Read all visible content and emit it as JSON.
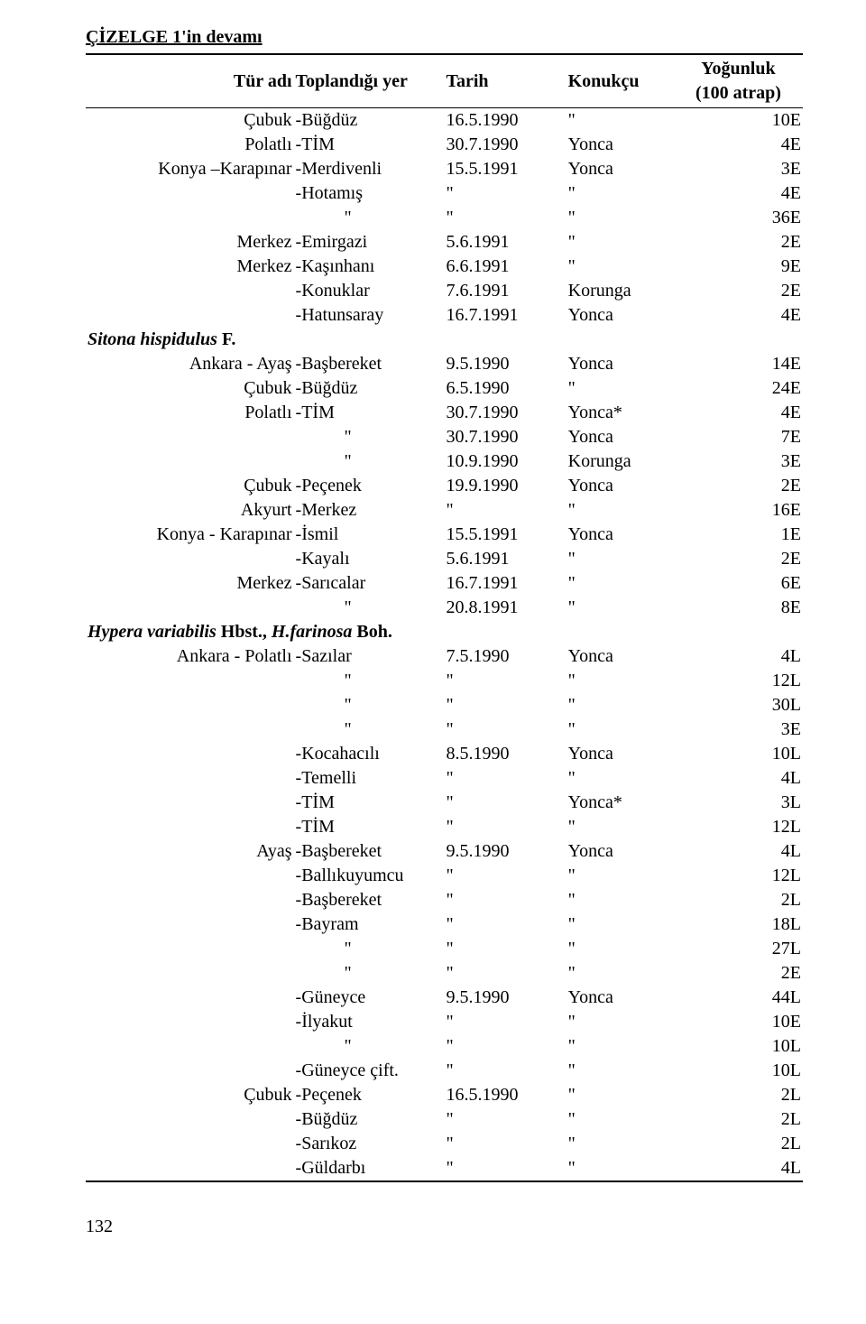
{
  "title": "ÇİZELGE 1'in devamı",
  "columns": {
    "c1": "Tür adı",
    "c2": "Toplandığı yer",
    "c3": "Tarih",
    "c4": "Konukçu",
    "c5a": "Yoğunluk",
    "c5b": "(100 atrap)"
  },
  "footer": "132",
  "rows": [
    {
      "c1": "Çubuk",
      "c2": "-Büğdüz",
      "c3": "16.5.1990",
      "c4": "\"",
      "c5": "10E"
    },
    {
      "c1": "Polatlı",
      "c2": "-TİM",
      "c3": "30.7.1990",
      "c4": "Yonca",
      "c5": "4E"
    },
    {
      "c1": "Konya –Karapınar",
      "c2": "-Merdivenli",
      "c3": "15.5.1991",
      "c4": "Yonca",
      "c5": "3E"
    },
    {
      "c1": "",
      "c2": "-Hotamış",
      "c3": "\"",
      "c4": "\"",
      "c5": "4E"
    },
    {
      "c1": "",
      "c2": "\"",
      "indent": true,
      "c3": "\"",
      "c4": "\"",
      "c5": "36E"
    },
    {
      "c1": "Merkez",
      "c2": "-Emirgazi",
      "c3": "5.6.1991",
      "c4": "\"",
      "c5": "2E"
    },
    {
      "c1": "Merkez",
      "c2": "-Kaşınhanı",
      "c3": "6.6.1991",
      "c4": "\"",
      "c5": "9E"
    },
    {
      "c1": "",
      "c2": "-Konuklar",
      "c3": "7.6.1991",
      "c4": "Korunga",
      "c5": "2E"
    },
    {
      "c1": "",
      "c2": "-Hatunsaray",
      "c3": "16.7.1991",
      "c4": "Yonca",
      "c5": "4E"
    },
    {
      "species": "<span class='ital bold'>Sitona hispidulus</span> <span class='bold'>F.</span>"
    },
    {
      "c1": "Ankara - Ayaş",
      "c2": "-Başbereket",
      "c3": "9.5.1990",
      "c4": "Yonca",
      "c5": "14E"
    },
    {
      "c1": "Çubuk",
      "c2": "-Büğdüz",
      "c3": "6.5.1990",
      "c4": "\"",
      "c5": "24E"
    },
    {
      "c1": "Polatlı",
      "c2": "-TİM",
      "c3": "30.7.1990",
      "c4": "Yonca*",
      "c5": "4E"
    },
    {
      "c1": "",
      "c2": "\"",
      "indent": true,
      "c3": "30.7.1990",
      "c4": "Yonca",
      "c5": "7E"
    },
    {
      "c1": "",
      "c2": "\"",
      "indent": true,
      "c3": "10.9.1990",
      "c4": "Korunga",
      "c5": "3E"
    },
    {
      "c1": "Çubuk",
      "c2": "-Peçenek",
      "c3": "19.9.1990",
      "c4": "Yonca",
      "c5": "2E"
    },
    {
      "c1": "Akyurt",
      "c2": "-Merkez",
      "c3": "\"",
      "c4": "\"",
      "c5": "16E"
    },
    {
      "c1": "Konya - Karapınar",
      "c2": "-İsmil",
      "c3": "15.5.1991",
      "c4": "Yonca",
      "c5": "1E"
    },
    {
      "c1": "",
      "c2": "-Kayalı",
      "c3": "5.6.1991",
      "c4": "\"",
      "c5": "2E"
    },
    {
      "c1": "Merkez",
      "c2": "-Sarıcalar",
      "c3": "16.7.1991",
      "c4": "\"",
      "c5": "6E"
    },
    {
      "c1": "",
      "c2": "\"",
      "indent": true,
      "c3": "20.8.1991",
      "c4": "\"",
      "c5": "8E"
    },
    {
      "species": "<span class='ital bold'>Hypera variabilis</span> <span class='bold'>Hbst.,</span> <span class='ital bold'>H.farinosa</span> <span class='bold'>Boh.</span>"
    },
    {
      "c1": "Ankara - Polatlı",
      "c2": "-Sazılar",
      "c3": "7.5.1990",
      "c4": "Yonca",
      "c5": "4L"
    },
    {
      "c1": "",
      "c2": "\"",
      "indent": true,
      "c3": "\"",
      "c4": "\"",
      "c5": "12L"
    },
    {
      "c1": "",
      "c2": "\"",
      "indent": true,
      "c3": "\"",
      "c4": "\"",
      "c5": "30L"
    },
    {
      "c1": "",
      "c2": "\"",
      "indent": true,
      "c3": "\"",
      "c4": "\"",
      "c5": "3E"
    },
    {
      "c1": "",
      "c2": "-Kocahacılı",
      "c3": "8.5.1990",
      "c4": "Yonca",
      "c5": "10L"
    },
    {
      "c1": "",
      "c2": "-Temelli",
      "c3": "\"",
      "c4": "\"",
      "c5": "4L"
    },
    {
      "c1": "",
      "c2": "-TİM",
      "c3": "\"",
      "c4": "Yonca*",
      "c5": "3L"
    },
    {
      "c1": "",
      "c2": "-TİM",
      "c3": "\"",
      "c4": "\"",
      "c5": "12L"
    },
    {
      "c1": "Ayaş",
      "c2": "-Başbereket",
      "c3": "9.5.1990",
      "c4": "Yonca",
      "c5": "4L"
    },
    {
      "c1": "",
      "c2": "-Ballıkuyumcu",
      "c3": "\"",
      "c4": "\"",
      "c5": "12L"
    },
    {
      "c1": "",
      "c2": "-Başbereket",
      "c3": "\"",
      "c4": "\"",
      "c5": "2L"
    },
    {
      "c1": "",
      "c2": "-Bayram",
      "c3": "\"",
      "c4": "\"",
      "c5": "18L"
    },
    {
      "c1": "",
      "c2": "\"",
      "indent": true,
      "c3": "\"",
      "c4": "\"",
      "c5": "27L"
    },
    {
      "c1": "",
      "c2": "\"",
      "indent": true,
      "c3": "\"",
      "c4": "\"",
      "c5": "2E"
    },
    {
      "c1": "",
      "c2": "-Güneyce",
      "c3": "9.5.1990",
      "c4": "Yonca",
      "c5": "44L"
    },
    {
      "c1": "",
      "c2": "-İlyakut",
      "c3": "\"",
      "c4": "\"",
      "c5": "10E"
    },
    {
      "c1": "",
      "c2": "\"",
      "indent": true,
      "c3": "\"",
      "c4": "\"",
      "c5": "10L"
    },
    {
      "c1": "",
      "c2": "-Güneyce çift.",
      "c3": "\"",
      "c4": "\"",
      "c5": "10L"
    },
    {
      "c1": "Çubuk",
      "c2": "-Peçenek",
      "c3": "16.5.1990",
      "c4": "\"",
      "c5": "2L"
    },
    {
      "c1": "",
      "c2": "-Büğdüz",
      "c3": "\"",
      "c4": "\"",
      "c5": "2L"
    },
    {
      "c1": "",
      "c2": "-Sarıkoz",
      "c3": "\"",
      "c4": "\"",
      "c5": "2L"
    },
    {
      "c1": "",
      "c2": "-Güldarbı",
      "c3": "\"",
      "c4": "\"",
      "c5": "4L"
    }
  ]
}
